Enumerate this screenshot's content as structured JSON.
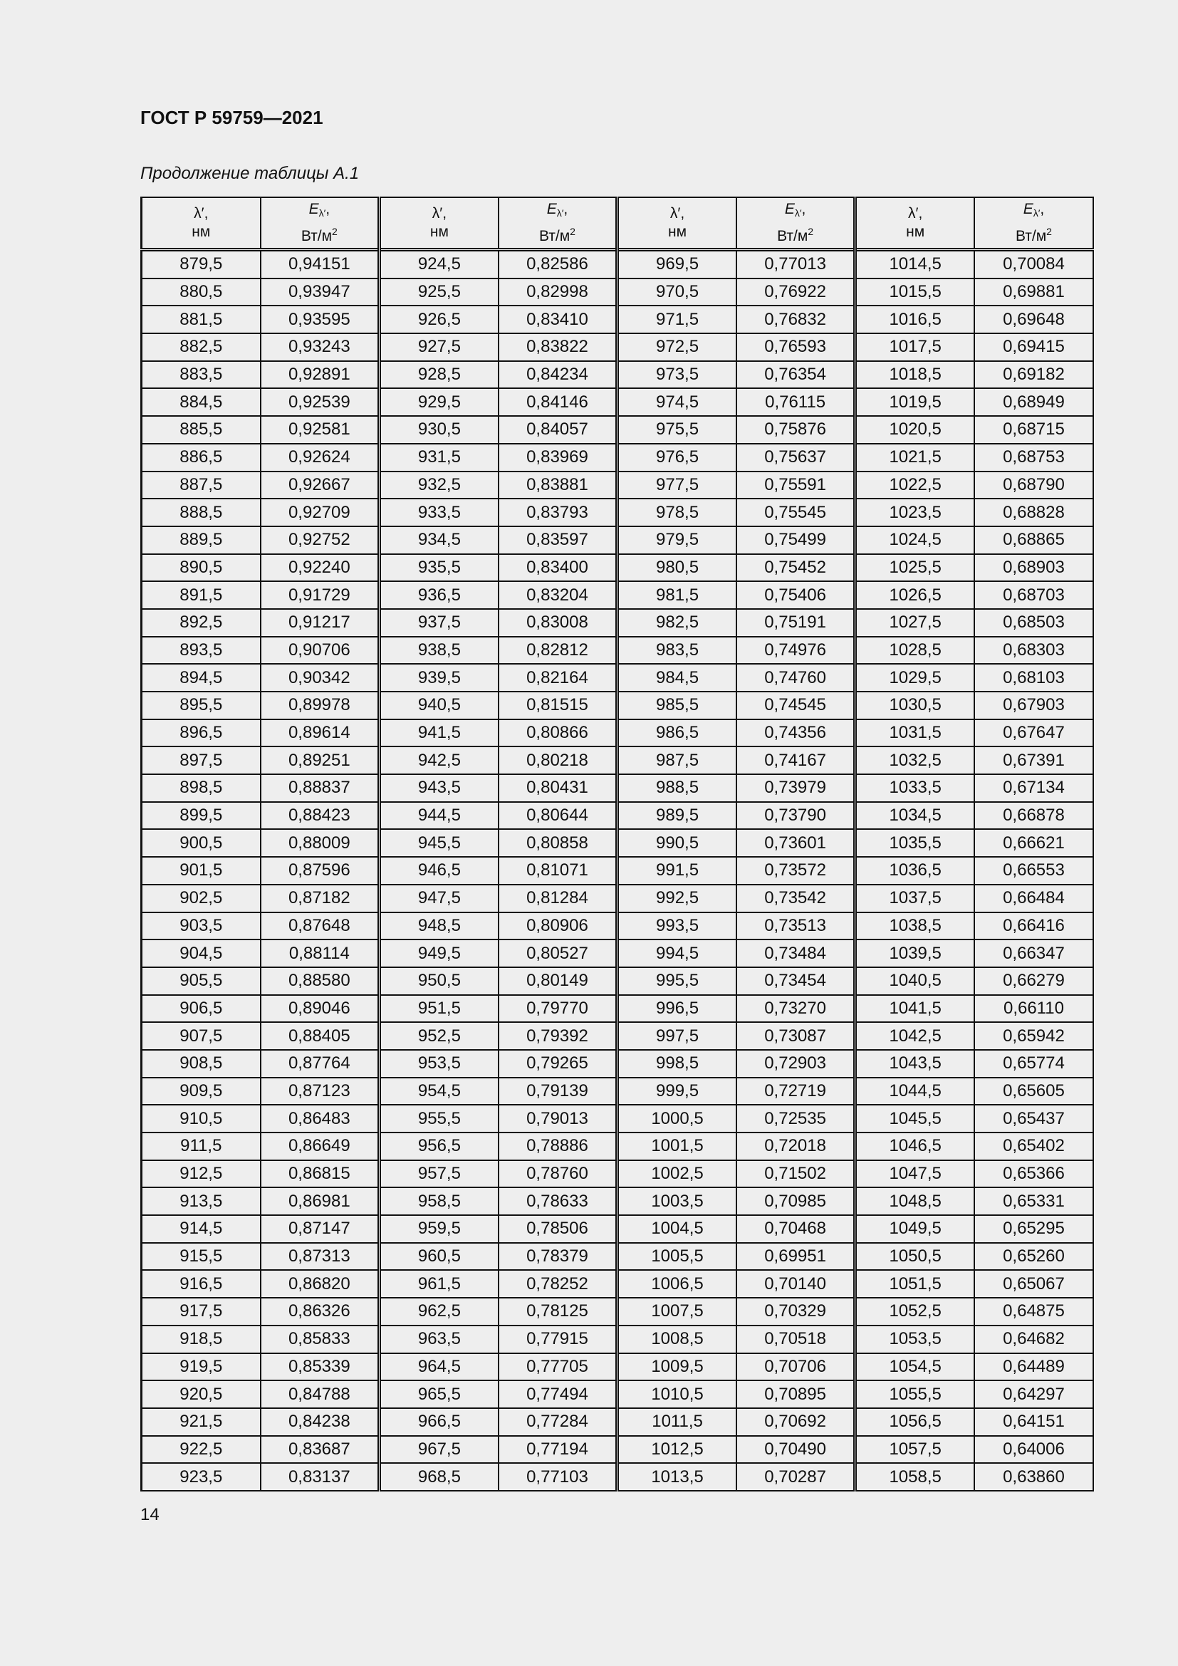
{
  "document": {
    "title": "ГОСТ Р 59759—2021",
    "caption": "Продолжение таблицы А.1",
    "page_number": "14"
  },
  "table": {
    "header": {
      "lambda": "λ′,",
      "lambda_unit": "нм",
      "e_symbol": "E",
      "e_subscript": "λ′",
      "e_comma": ",",
      "e_unit": "Вт/м",
      "e_unit_sup": "2"
    },
    "rows": [
      [
        "879,5",
        "0,94151",
        "924,5",
        "0,82586",
        "969,5",
        "0,77013",
        "1014,5",
        "0,70084"
      ],
      [
        "880,5",
        "0,93947",
        "925,5",
        "0,82998",
        "970,5",
        "0,76922",
        "1015,5",
        "0,69881"
      ],
      [
        "881,5",
        "0,93595",
        "926,5",
        "0,83410",
        "971,5",
        "0,76832",
        "1016,5",
        "0,69648"
      ],
      [
        "882,5",
        "0,93243",
        "927,5",
        "0,83822",
        "972,5",
        "0,76593",
        "1017,5",
        "0,69415"
      ],
      [
        "883,5",
        "0,92891",
        "928,5",
        "0,84234",
        "973,5",
        "0,76354",
        "1018,5",
        "0,69182"
      ],
      [
        "884,5",
        "0,92539",
        "929,5",
        "0,84146",
        "974,5",
        "0,76115",
        "1019,5",
        "0,68949"
      ],
      [
        "885,5",
        "0,92581",
        "930,5",
        "0,84057",
        "975,5",
        "0,75876",
        "1020,5",
        "0,68715"
      ],
      [
        "886,5",
        "0,92624",
        "931,5",
        "0,83969",
        "976,5",
        "0,75637",
        "1021,5",
        "0,68753"
      ],
      [
        "887,5",
        "0,92667",
        "932,5",
        "0,83881",
        "977,5",
        "0,75591",
        "1022,5",
        "0,68790"
      ],
      [
        "888,5",
        "0,92709",
        "933,5",
        "0,83793",
        "978,5",
        "0,75545",
        "1023,5",
        "0,68828"
      ],
      [
        "889,5",
        "0,92752",
        "934,5",
        "0,83597",
        "979,5",
        "0,75499",
        "1024,5",
        "0,68865"
      ],
      [
        "890,5",
        "0,92240",
        "935,5",
        "0,83400",
        "980,5",
        "0,75452",
        "1025,5",
        "0,68903"
      ],
      [
        "891,5",
        "0,91729",
        "936,5",
        "0,83204",
        "981,5",
        "0,75406",
        "1026,5",
        "0,68703"
      ],
      [
        "892,5",
        "0,91217",
        "937,5",
        "0,83008",
        "982,5",
        "0,75191",
        "1027,5",
        "0,68503"
      ],
      [
        "893,5",
        "0,90706",
        "938,5",
        "0,82812",
        "983,5",
        "0,74976",
        "1028,5",
        "0,68303"
      ],
      [
        "894,5",
        "0,90342",
        "939,5",
        "0,82164",
        "984,5",
        "0,74760",
        "1029,5",
        "0,68103"
      ],
      [
        "895,5",
        "0,89978",
        "940,5",
        "0,81515",
        "985,5",
        "0,74545",
        "1030,5",
        "0,67903"
      ],
      [
        "896,5",
        "0,89614",
        "941,5",
        "0,80866",
        "986,5",
        "0,74356",
        "1031,5",
        "0,67647"
      ],
      [
        "897,5",
        "0,89251",
        "942,5",
        "0,80218",
        "987,5",
        "0,74167",
        "1032,5",
        "0,67391"
      ],
      [
        "898,5",
        "0,88837",
        "943,5",
        "0,80431",
        "988,5",
        "0,73979",
        "1033,5",
        "0,67134"
      ],
      [
        "899,5",
        "0,88423",
        "944,5",
        "0,80644",
        "989,5",
        "0,73790",
        "1034,5",
        "0,66878"
      ],
      [
        "900,5",
        "0,88009",
        "945,5",
        "0,80858",
        "990,5",
        "0,73601",
        "1035,5",
        "0,66621"
      ],
      [
        "901,5",
        "0,87596",
        "946,5",
        "0,81071",
        "991,5",
        "0,73572",
        "1036,5",
        "0,66553"
      ],
      [
        "902,5",
        "0,87182",
        "947,5",
        "0,81284",
        "992,5",
        "0,73542",
        "1037,5",
        "0,66484"
      ],
      [
        "903,5",
        "0,87648",
        "948,5",
        "0,80906",
        "993,5",
        "0,73513",
        "1038,5",
        "0,66416"
      ],
      [
        "904,5",
        "0,88114",
        "949,5",
        "0,80527",
        "994,5",
        "0,73484",
        "1039,5",
        "0,66347"
      ],
      [
        "905,5",
        "0,88580",
        "950,5",
        "0,80149",
        "995,5",
        "0,73454",
        "1040,5",
        "0,66279"
      ],
      [
        "906,5",
        "0,89046",
        "951,5",
        "0,79770",
        "996,5",
        "0,73270",
        "1041,5",
        "0,66110"
      ],
      [
        "907,5",
        "0,88405",
        "952,5",
        "0,79392",
        "997,5",
        "0,73087",
        "1042,5",
        "0,65942"
      ],
      [
        "908,5",
        "0,87764",
        "953,5",
        "0,79265",
        "998,5",
        "0,72903",
        "1043,5",
        "0,65774"
      ],
      [
        "909,5",
        "0,87123",
        "954,5",
        "0,79139",
        "999,5",
        "0,72719",
        "1044,5",
        "0,65605"
      ],
      [
        "910,5",
        "0,86483",
        "955,5",
        "0,79013",
        "1000,5",
        "0,72535",
        "1045,5",
        "0,65437"
      ],
      [
        "911,5",
        "0,86649",
        "956,5",
        "0,78886",
        "1001,5",
        "0,72018",
        "1046,5",
        "0,65402"
      ],
      [
        "912,5",
        "0,86815",
        "957,5",
        "0,78760",
        "1002,5",
        "0,71502",
        "1047,5",
        "0,65366"
      ],
      [
        "913,5",
        "0,86981",
        "958,5",
        "0,78633",
        "1003,5",
        "0,70985",
        "1048,5",
        "0,65331"
      ],
      [
        "914,5",
        "0,87147",
        "959,5",
        "0,78506",
        "1004,5",
        "0,70468",
        "1049,5",
        "0,65295"
      ],
      [
        "915,5",
        "0,87313",
        "960,5",
        "0,78379",
        "1005,5",
        "0,69951",
        "1050,5",
        "0,65260"
      ],
      [
        "916,5",
        "0,86820",
        "961,5",
        "0,78252",
        "1006,5",
        "0,70140",
        "1051,5",
        "0,65067"
      ],
      [
        "917,5",
        "0,86326",
        "962,5",
        "0,78125",
        "1007,5",
        "0,70329",
        "1052,5",
        "0,64875"
      ],
      [
        "918,5",
        "0,85833",
        "963,5",
        "0,77915",
        "1008,5",
        "0,70518",
        "1053,5",
        "0,64682"
      ],
      [
        "919,5",
        "0,85339",
        "964,5",
        "0,77705",
        "1009,5",
        "0,70706",
        "1054,5",
        "0,64489"
      ],
      [
        "920,5",
        "0,84788",
        "965,5",
        "0,77494",
        "1010,5",
        "0,70895",
        "1055,5",
        "0,64297"
      ],
      [
        "921,5",
        "0,84238",
        "966,5",
        "0,77284",
        "1011,5",
        "0,70692",
        "1056,5",
        "0,64151"
      ],
      [
        "922,5",
        "0,83687",
        "967,5",
        "0,77194",
        "1012,5",
        "0,70490",
        "1057,5",
        "0,64006"
      ],
      [
        "923,5",
        "0,83137",
        "968,5",
        "0,77103",
        "1013,5",
        "0,70287",
        "1058,5",
        "0,63860"
      ]
    ]
  }
}
